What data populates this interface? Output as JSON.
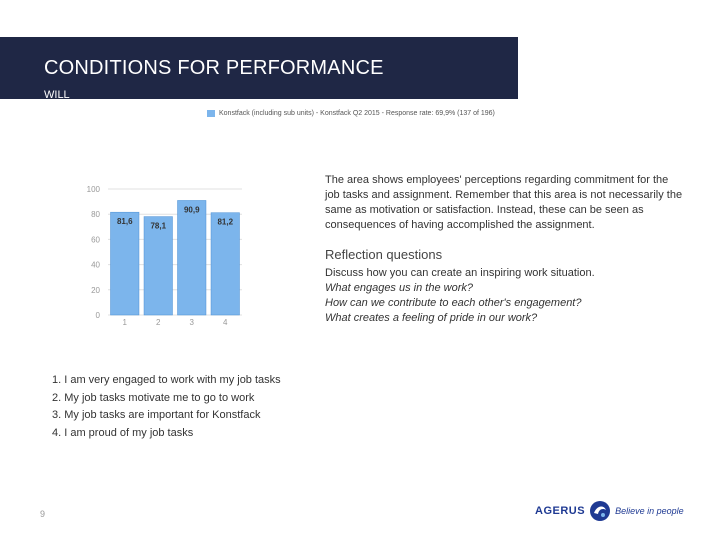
{
  "header": {
    "title": "CONDITIONS FOR PERFORMANCE",
    "subtitle": "WILL"
  },
  "colors": {
    "header_bg": "#1f2745",
    "bar": "#7cb5ec",
    "bar_border": "#4a8fd4",
    "grid": "#e0e0e0",
    "brand": "#1f3a93"
  },
  "chart_data": {
    "type": "bar",
    "legend": "Konstfack (including sub units) - Konstfack Q2 2015 - Response rate: 69,9% (137 of 196)",
    "categories": [
      "1",
      "2",
      "3",
      "4"
    ],
    "values": [
      81.6,
      78.1,
      90.9,
      81.2
    ],
    "value_labels": [
      "81,6",
      "78,1",
      "90,9",
      "81,2"
    ],
    "y_ticks": [
      "0",
      "20",
      "40",
      "60",
      "80",
      "100"
    ],
    "ylim": [
      0,
      100
    ],
    "grid": true
  },
  "info": {
    "description": "The area shows employees' perceptions regarding commitment for the job tasks and assignment. Remember that this area is not necessarily the same as motivation or satisfaction. Instead, these can be seen as consequences of having accomplished the assignment.",
    "reflection_title": "Reflection questions",
    "reflection_intro": "Discuss how you can create an inspiring work situation.",
    "questions": [
      "What engages us in the work?",
      "How can we contribute to each other's engagement?",
      "What creates a feeling of pride in our work?"
    ]
  },
  "items": [
    "1. I am very engaged to work with my job tasks",
    "2. My job tasks motivate me to go to work",
    "3. My job tasks are important for Konstfack",
    "4. I am proud of my job tasks"
  ],
  "footer": {
    "page_number": "9",
    "logo_text": "AGERUS",
    "logo_tagline": "Believe in people"
  }
}
